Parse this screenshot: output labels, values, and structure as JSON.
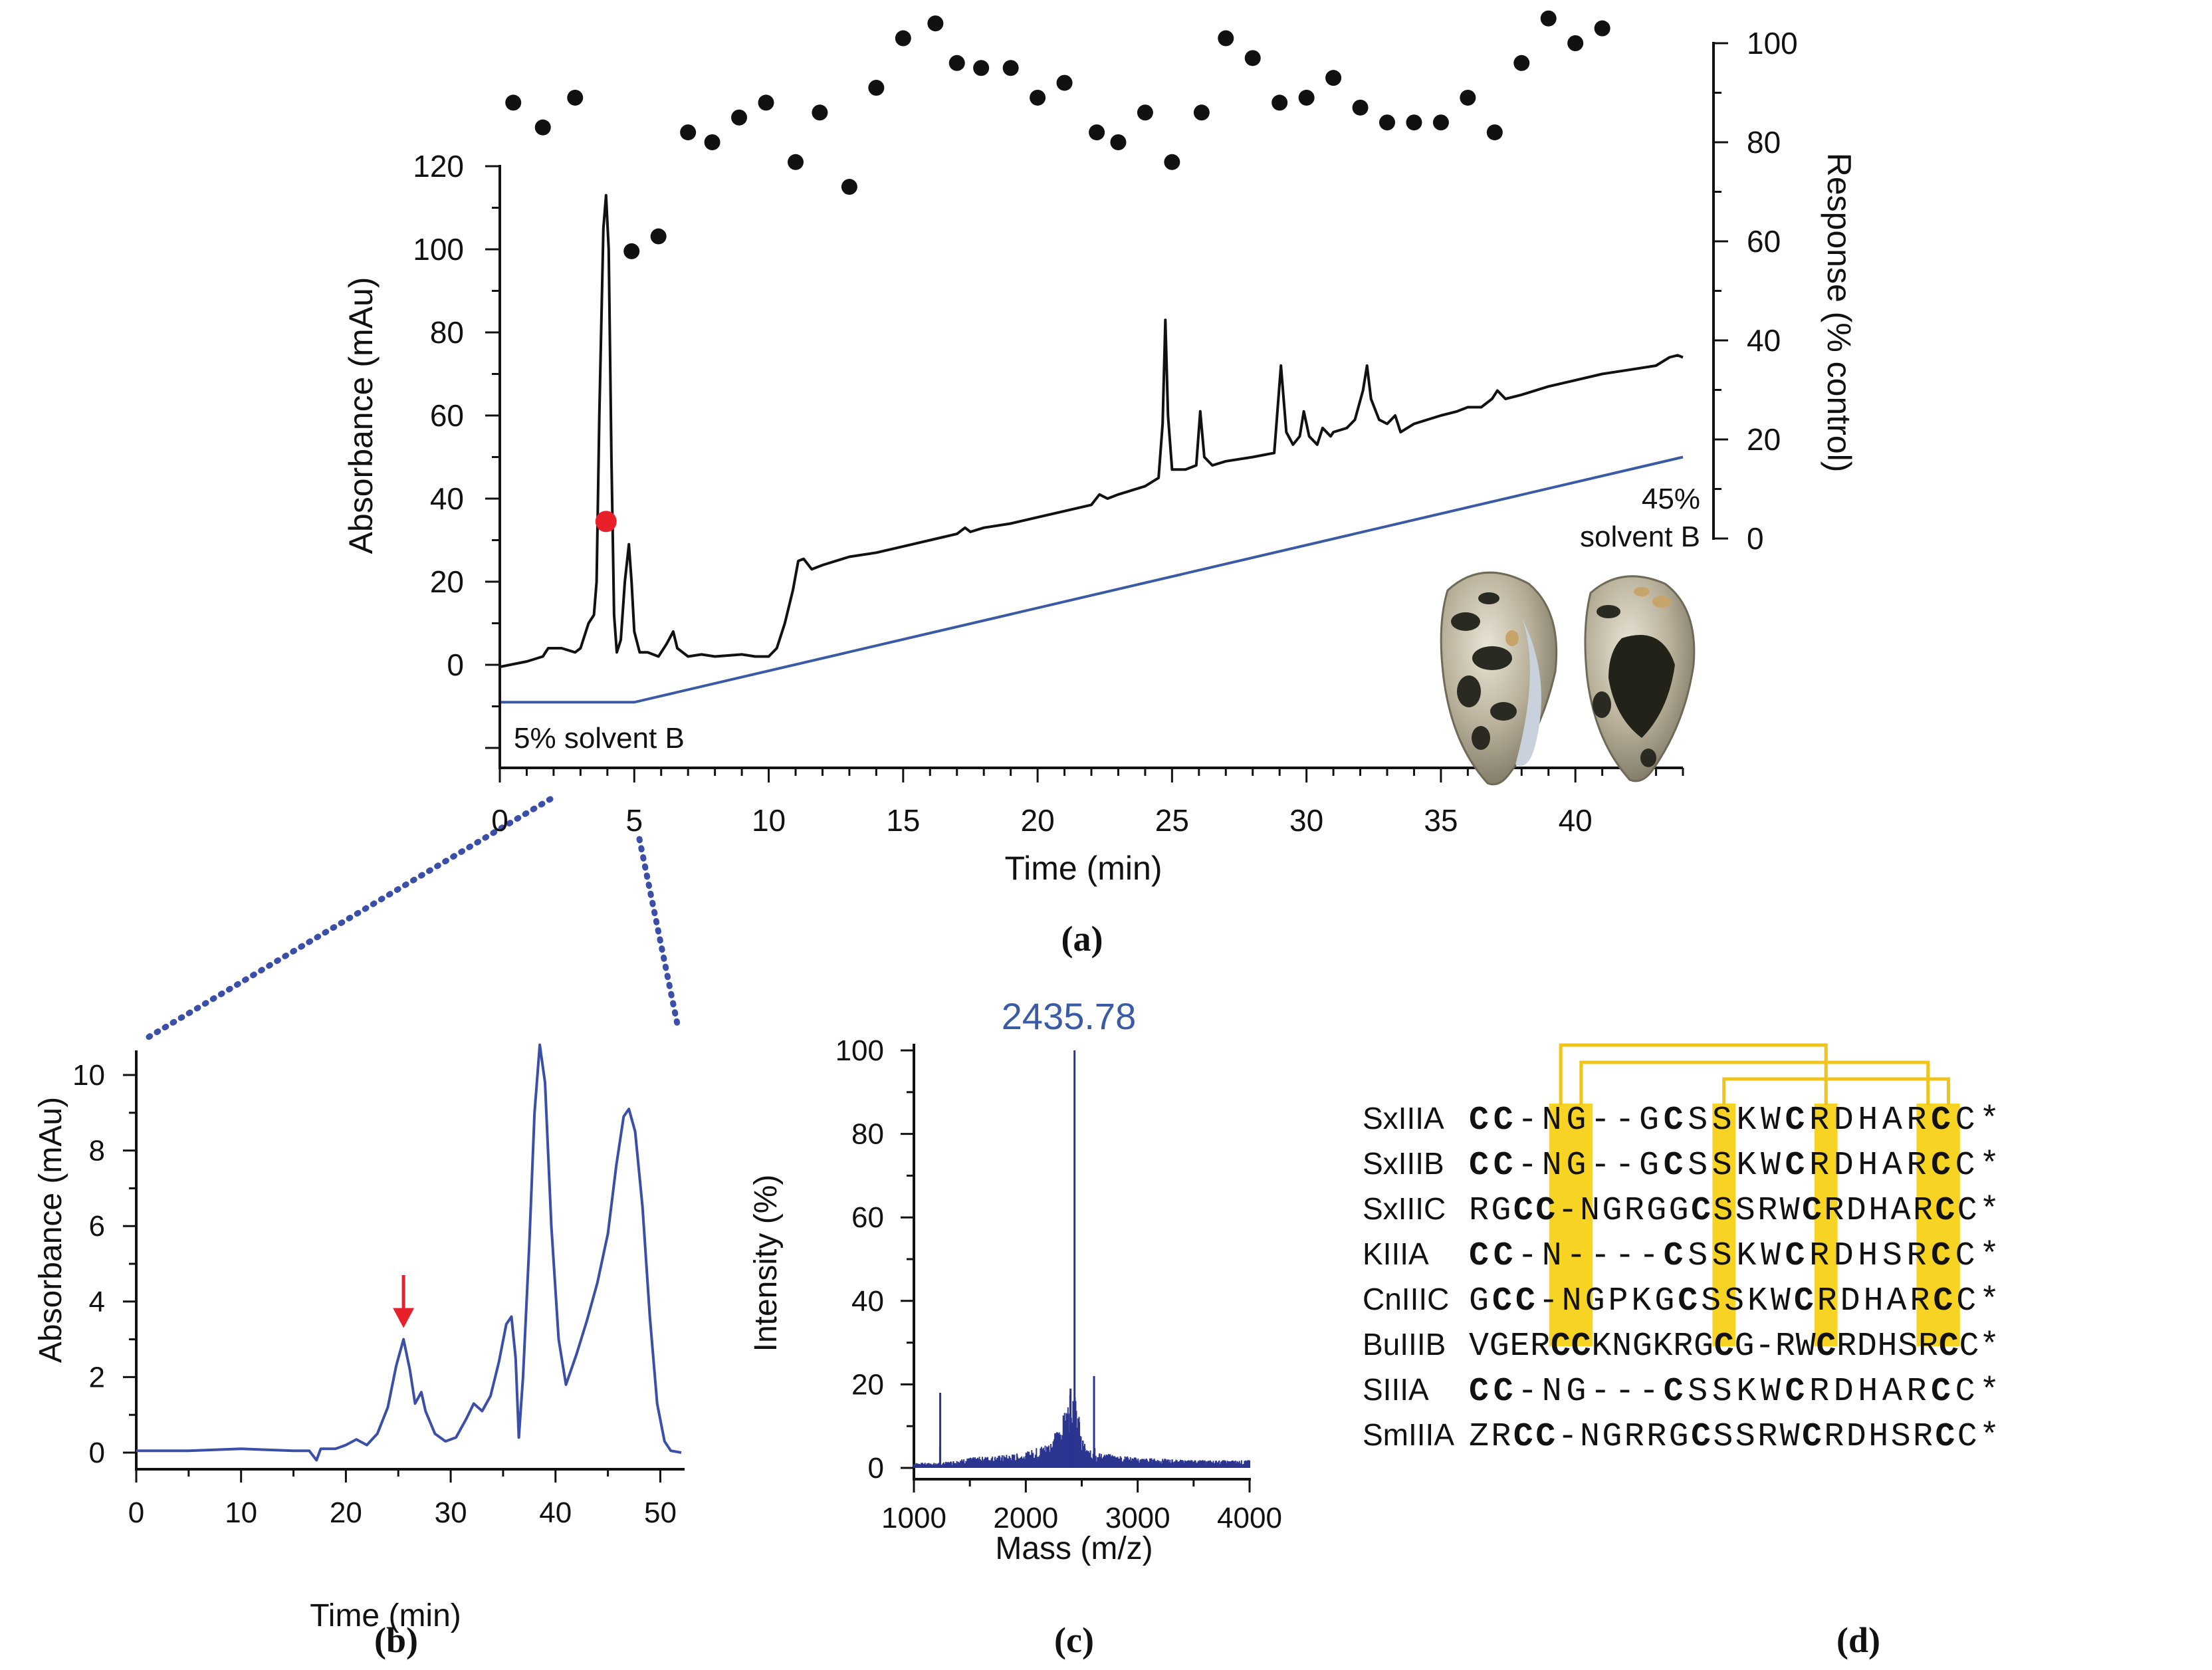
{
  "chart_data": [
    {
      "id": "a",
      "panel_label": "(a)",
      "type": "line",
      "xlabel": "Time (min)",
      "ylabel": "Absorbance (mAu)",
      "y2label": "Response (% control)",
      "xlim": [
        0,
        44
      ],
      "ylim": [
        -25,
        130
      ],
      "y2lim": [
        0,
        100
      ],
      "xticks": [
        "0",
        "5",
        "10",
        "15",
        "20",
        "25",
        "30",
        "35",
        "40"
      ],
      "yticks": [
        "0",
        "20",
        "40",
        "60",
        "80",
        "100",
        "120"
      ],
      "y2ticks": [
        "0",
        "20",
        "40",
        "60",
        "80",
        "100"
      ],
      "colors": {
        "trace": "#111111",
        "gradient": "#3b5aa6",
        "highlight": "#e8202a",
        "dots": "#111111"
      },
      "annotations": {
        "start_label": "5% solvent B",
        "end_label_1": "45%",
        "end_label_2": "solvent B"
      },
      "series": [
        {
          "name": "Absorbance",
          "axis": "left",
          "points": [
            [
              0,
              -0.5
            ],
            [
              1,
              0.8
            ],
            [
              1.6,
              2
            ],
            [
              1.8,
              4
            ],
            [
              2.3,
              4
            ],
            [
              2.8,
              3
            ],
            [
              3.0,
              4
            ],
            [
              3.3,
              10
            ],
            [
              3.5,
              12
            ],
            [
              3.6,
              20
            ],
            [
              3.7,
              60
            ],
            [
              3.85,
              105
            ],
            [
              3.95,
              113
            ],
            [
              4.05,
              100
            ],
            [
              4.15,
              50
            ],
            [
              4.25,
              12
            ],
            [
              4.35,
              3
            ],
            [
              4.5,
              6
            ],
            [
              4.65,
              20
            ],
            [
              4.8,
              29
            ],
            [
              4.9,
              20
            ],
            [
              5.0,
              8
            ],
            [
              5.2,
              3
            ],
            [
              5.5,
              3
            ],
            [
              5.9,
              2
            ],
            [
              6.2,
              5
            ],
            [
              6.45,
              8
            ],
            [
              6.6,
              4
            ],
            [
              7.0,
              2
            ],
            [
              7.5,
              2.5
            ],
            [
              8.0,
              2
            ],
            [
              9.0,
              2.5
            ],
            [
              9.5,
              2
            ],
            [
              10.0,
              2
            ],
            [
              10.3,
              4
            ],
            [
              10.6,
              10
            ],
            [
              10.9,
              18
            ],
            [
              11.1,
              25
            ],
            [
              11.3,
              25.5
            ],
            [
              11.6,
              23
            ],
            [
              12,
              24
            ],
            [
              13,
              26
            ],
            [
              14,
              27
            ],
            [
              15,
              28.5
            ],
            [
              16,
              30
            ],
            [
              17,
              31.5
            ],
            [
              17.3,
              33
            ],
            [
              17.5,
              32
            ],
            [
              18,
              33
            ],
            [
              19,
              34
            ],
            [
              20,
              35.5
            ],
            [
              21,
              37
            ],
            [
              22,
              38.5
            ],
            [
              22.3,
              41
            ],
            [
              22.6,
              40
            ],
            [
              23,
              41
            ],
            [
              24,
              43
            ],
            [
              24.5,
              45
            ],
            [
              24.65,
              58
            ],
            [
              24.75,
              83
            ],
            [
              24.85,
              60
            ],
            [
              25.0,
              47
            ],
            [
              25.5,
              47
            ],
            [
              25.9,
              48
            ],
            [
              26.05,
              61
            ],
            [
              26.2,
              50
            ],
            [
              26.5,
              48
            ],
            [
              27,
              49
            ],
            [
              28,
              50
            ],
            [
              28.8,
              51
            ],
            [
              29.05,
              72
            ],
            [
              29.25,
              56
            ],
            [
              29.5,
              53
            ],
            [
              29.75,
              55
            ],
            [
              29.9,
              61
            ],
            [
              30.1,
              55
            ],
            [
              30.4,
              53
            ],
            [
              30.6,
              57
            ],
            [
              30.9,
              55
            ],
            [
              31,
              56
            ],
            [
              31.5,
              57
            ],
            [
              31.8,
              59
            ],
            [
              32.1,
              66
            ],
            [
              32.25,
              72
            ],
            [
              32.4,
              64
            ],
            [
              32.7,
              59
            ],
            [
              33,
              58
            ],
            [
              33.3,
              60
            ],
            [
              33.5,
              56
            ],
            [
              34,
              58
            ],
            [
              35,
              60
            ],
            [
              35.6,
              61
            ],
            [
              36,
              62
            ],
            [
              36.5,
              62
            ],
            [
              36.9,
              64
            ],
            [
              37.1,
              66
            ],
            [
              37.4,
              64
            ],
            [
              38,
              65
            ],
            [
              39,
              67
            ],
            [
              40,
              68.5
            ],
            [
              41,
              70
            ],
            [
              42,
              71
            ],
            [
              43,
              72
            ],
            [
              43.5,
              74
            ],
            [
              43.8,
              74.5
            ],
            [
              44,
              74
            ]
          ]
        },
        {
          "name": "Gradient (% solvent B)",
          "axis": "left",
          "points": [
            [
              0,
              -9
            ],
            [
              5,
              -9
            ],
            [
              44,
              50
            ]
          ]
        },
        {
          "name": "Response",
          "axis": "right",
          "marker": "dot",
          "points": [
            [
              0.5,
              88
            ],
            [
              1.6,
              83
            ],
            [
              2.8,
              89
            ],
            [
              4.9,
              58
            ],
            [
              5.9,
              61
            ],
            [
              7.0,
              82
            ],
            [
              7.9,
              80
            ],
            [
              8.9,
              85
            ],
            [
              9.9,
              88
            ],
            [
              11.0,
              76
            ],
            [
              11.9,
              86
            ],
            [
              13.0,
              71
            ],
            [
              14.0,
              91
            ],
            [
              15.0,
              101
            ],
            [
              16.2,
              104
            ],
            [
              17.0,
              96
            ],
            [
              17.9,
              95
            ],
            [
              19.0,
              95
            ],
            [
              20.0,
              89
            ],
            [
              21.0,
              92
            ],
            [
              22.2,
              82
            ],
            [
              23.0,
              80
            ],
            [
              24.0,
              86
            ],
            [
              25.0,
              76
            ],
            [
              26.1,
              86
            ],
            [
              27.0,
              101
            ],
            [
              28.0,
              97
            ],
            [
              29.0,
              88
            ],
            [
              30.0,
              89
            ],
            [
              31.0,
              93
            ],
            [
              32.0,
              87
            ],
            [
              33.0,
              84
            ],
            [
              34.0,
              84
            ],
            [
              35.0,
              84
            ],
            [
              36.0,
              89
            ],
            [
              37.0,
              82
            ],
            [
              38.0,
              96
            ],
            [
              39.0,
              105
            ],
            [
              40.0,
              100
            ],
            [
              41.0,
              103
            ]
          ]
        },
        {
          "name": "Selected fraction",
          "axis": "left",
          "marker": "highlight",
          "points": [
            [
              3.95,
              34.5
            ]
          ]
        }
      ]
    },
    {
      "id": "b",
      "panel_label": "(b)",
      "type": "line",
      "xlabel": "Time (min)",
      "ylabel": "Absorbance (mAu)",
      "xlim": [
        0,
        52
      ],
      "ylim": [
        -0.6,
        10.5
      ],
      "xticks": [
        "0",
        "10",
        "20",
        "30",
        "40",
        "50"
      ],
      "yticks": [
        "0",
        "2",
        "4",
        "6",
        "8",
        "10"
      ],
      "colors": {
        "trace": "#3b4ea8",
        "arrow": "#e8202a",
        "zoom": "#3b4ea8"
      },
      "arrow_at": {
        "x": 25.5,
        "y_from": 4.7,
        "y_to": 3.3
      },
      "series": [
        {
          "name": "Absorbance",
          "points": [
            [
              0,
              0.05
            ],
            [
              5,
              0.05
            ],
            [
              10,
              0.1
            ],
            [
              15,
              0.05
            ],
            [
              16.5,
              0.05
            ],
            [
              17.2,
              -0.2
            ],
            [
              17.6,
              0.1
            ],
            [
              19,
              0.1
            ],
            [
              20,
              0.2
            ],
            [
              21,
              0.35
            ],
            [
              22,
              0.2
            ],
            [
              23,
              0.5
            ],
            [
              24,
              1.2
            ],
            [
              24.8,
              2.3
            ],
            [
              25.5,
              3.0
            ],
            [
              26.1,
              2.2
            ],
            [
              26.6,
              1.3
            ],
            [
              27.2,
              1.6
            ],
            [
              27.6,
              1.1
            ],
            [
              28.5,
              0.5
            ],
            [
              29.5,
              0.3
            ],
            [
              30.5,
              0.4
            ],
            [
              31.5,
              0.9
            ],
            [
              32.2,
              1.3
            ],
            [
              33.0,
              1.1
            ],
            [
              33.8,
              1.5
            ],
            [
              34.6,
              2.4
            ],
            [
              35.3,
              3.4
            ],
            [
              35.8,
              3.6
            ],
            [
              36.2,
              2.5
            ],
            [
              36.5,
              0.4
            ],
            [
              36.9,
              2.0
            ],
            [
              37.5,
              5.5
            ],
            [
              38.0,
              9.0
            ],
            [
              38.5,
              10.8
            ],
            [
              39.0,
              9.8
            ],
            [
              39.6,
              6.0
            ],
            [
              40.3,
              3.0
            ],
            [
              41.0,
              1.8
            ],
            [
              42.0,
              2.6
            ],
            [
              43.0,
              3.5
            ],
            [
              44.0,
              4.5
            ],
            [
              45.0,
              5.8
            ],
            [
              45.8,
              7.6
            ],
            [
              46.5,
              8.9
            ],
            [
              47.0,
              9.1
            ],
            [
              47.6,
              8.5
            ],
            [
              48.3,
              6.5
            ],
            [
              49.0,
              3.6
            ],
            [
              49.7,
              1.3
            ],
            [
              50.4,
              0.3
            ],
            [
              51.0,
              0.05
            ],
            [
              52.0,
              0.0
            ]
          ]
        }
      ]
    },
    {
      "id": "c",
      "panel_label": "(c)",
      "type": "line",
      "xlabel": "Mass (m/z)",
      "ylabel": "Intensity (%)",
      "xlim": [
        1000,
        4000
      ],
      "ylim": [
        -3,
        103
      ],
      "xticks": [
        "1000",
        "2000",
        "3000",
        "4000"
      ],
      "yticks": [
        "0",
        "20",
        "40",
        "60",
        "80",
        "100"
      ],
      "peak_label": "2435.78",
      "colors": {
        "trace": "#2b3590",
        "label": "#3b5aa6"
      },
      "series": [
        {
          "name": "Intensity",
          "points": [
            [
              1000,
              1
            ],
            [
              1230,
              1
            ],
            [
              1235,
              18
            ],
            [
              1240,
              1
            ],
            [
              1500,
              2
            ],
            [
              1800,
              2.5
            ],
            [
              2000,
              3
            ],
            [
              2200,
              5
            ],
            [
              2300,
              8
            ],
            [
              2380,
              13
            ],
            [
              2400,
              19
            ],
            [
              2410,
              12
            ],
            [
              2425,
              16
            ],
            [
              2435.78,
              100
            ],
            [
              2445,
              15
            ],
            [
              2470,
              11
            ],
            [
              2500,
              6
            ],
            [
              2540,
              4
            ],
            [
              2600,
              3
            ],
            [
              2610,
              22
            ],
            [
              2620,
              3
            ],
            [
              3000,
              2
            ],
            [
              3500,
              1.5
            ],
            [
              4000,
              1.5
            ]
          ]
        }
      ]
    }
  ],
  "alignment": {
    "panel_label": "(d)",
    "colors": {
      "highlight": "#f7d324",
      "bridge": "#f0c419",
      "text": "#111111"
    },
    "rows": [
      {
        "name": "SxIIIA",
        "seq": "    CC-NG--GCSSKWCRDHARCC*"
      },
      {
        "name": "SxIIIB",
        "seq": "    CC-NG--GCSSKWCRDHARCC*"
      },
      {
        "name": "SxIIIC",
        "seq": "  RGCC-NGRGGCSSRWCRDHARCC*"
      },
      {
        "name": "KIIIA",
        "seq": "    CC-N----CSSKWCRDHSRCC*"
      },
      {
        "name": "CnIIIC",
        "seq": "   GCC-NGPKGCSSKWCRDHARCC*"
      },
      {
        "name": "BuIIIB",
        "seq": "VGERCCKNGKRGCG-RWCRDHSRCC*"
      },
      {
        "name": "SIIIA",
        "seq": "    CC-NG---CSSKWCRDHARCC*"
      },
      {
        "name": "SmIIIA",
        "seq": "  ZRCC-NGRRGCSSRWCRDHSRCC*"
      }
    ],
    "highlight_columns": [
      4,
      5,
      12,
      17,
      22,
      23
    ],
    "disulfide_bonds": [
      [
        4,
        17
      ],
      [
        5,
        22
      ],
      [
        12,
        23
      ]
    ]
  }
}
